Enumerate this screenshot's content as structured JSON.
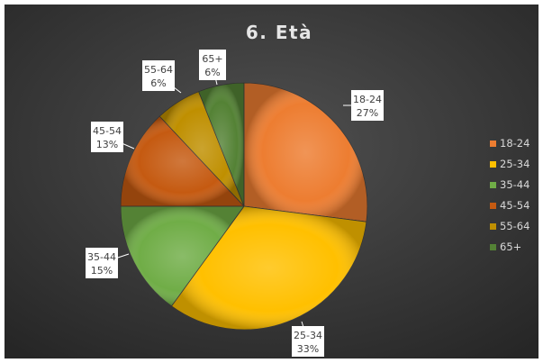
{
  "chart_data": {
    "type": "pie",
    "title": "6. Età",
    "categories": [
      "18-24",
      "25-34",
      "35-44",
      "45-54",
      "55-64",
      "65+"
    ],
    "values": [
      27,
      33,
      15,
      13,
      6,
      6
    ],
    "value_labels": [
      "27%",
      "33%",
      "15%",
      "13%",
      "6%",
      "6%"
    ],
    "colors": [
      "#ED7D31",
      "#FFC000",
      "#70AD47",
      "#C55A11",
      "#BF8F00",
      "#548235"
    ],
    "legend_position": "right",
    "background": "#3a3a3a"
  }
}
